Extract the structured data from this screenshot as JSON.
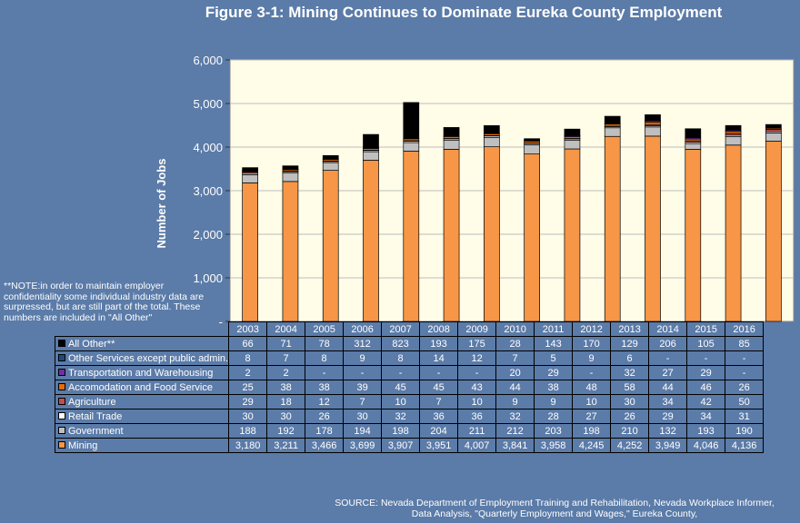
{
  "title": "Figure 3-1: Mining Continues to Dominate Eureka County Employment",
  "note": "**NOTE:in order to maintain employer confidentiality some individual industry data are surpressed, but are still part of the total. These numbers are included in \"All Other\"",
  "source": "SOURCE: Nevada Department of Employment Training and Rehabilitation, Nevada Workplace Informer, Data Analysis, \"Quarterly Employment and Wages,\" Eureka County,",
  "chart_data": {
    "type": "bar",
    "stacked": true,
    "ylabel": "Number of Jobs",
    "ylim": [
      0,
      6000
    ],
    "yticks": [
      "-",
      "1,000",
      "2,000",
      "3,000",
      "4,000",
      "5,000",
      "6,000"
    ],
    "categories": [
      "2003",
      "2004",
      "2005",
      "2006",
      "2007",
      "2008",
      "2009",
      "2010",
      "2011",
      "2012",
      "2013",
      "2014",
      "2015",
      "2016"
    ],
    "series": [
      {
        "name": "Mining",
        "color": "#f79646",
        "values": [
          3180,
          3211,
          3466,
          3699,
          3907,
          3951,
          4007,
          3841,
          3958,
          4245,
          4252,
          3949,
          4046,
          4136
        ],
        "labels": [
          "3,180",
          "3,211",
          "3,466",
          "3,699",
          "3,907",
          "3,951",
          "4,007",
          "3,841",
          "3,958",
          "4,245",
          "4,252",
          "3,949",
          "4,046",
          "4,136"
        ]
      },
      {
        "name": "Government",
        "color": "#bfbfbf",
        "values": [
          188,
          192,
          178,
          194,
          198,
          204,
          211,
          212,
          203,
          198,
          210,
          132,
          193,
          190
        ],
        "labels": [
          "188",
          "192",
          "178",
          "194",
          "198",
          "204",
          "211",
          "212",
          "203",
          "198",
          "210",
          "132",
          "193",
          "190"
        ]
      },
      {
        "name": "Retail Trade",
        "color": "#ffffff",
        "values": [
          30,
          30,
          26,
          30,
          32,
          36,
          36,
          32,
          28,
          27,
          26,
          29,
          34,
          31
        ],
        "labels": [
          "30",
          "30",
          "26",
          "30",
          "32",
          "36",
          "36",
          "32",
          "28",
          "27",
          "26",
          "29",
          "34",
          "31"
        ]
      },
      {
        "name": "Agriculture",
        "color": "#c0504d",
        "values": [
          29,
          18,
          12,
          7,
          10,
          7,
          10,
          9,
          9,
          10,
          30,
          34,
          42,
          50
        ],
        "labels": [
          "29",
          "18",
          "12",
          "7",
          "10",
          "7",
          "10",
          "9",
          "9",
          "10",
          "30",
          "34",
          "42",
          "50"
        ]
      },
      {
        "name": "Accomodation and Food Service",
        "color": "#e46c0a",
        "values": [
          25,
          38,
          38,
          39,
          45,
          45,
          43,
          44,
          38,
          48,
          58,
          44,
          46,
          26
        ],
        "labels": [
          "25",
          "38",
          "38",
          "39",
          "45",
          "45",
          "43",
          "44",
          "38",
          "48",
          "58",
          "44",
          "46",
          "26"
        ]
      },
      {
        "name": "Transportation and Warehousing",
        "color": "#7030a0",
        "values": [
          2,
          2,
          0,
          0,
          0,
          0,
          0,
          20,
          29,
          0,
          32,
          27,
          29,
          0
        ],
        "labels": [
          "2",
          "2",
          "-",
          "-",
          "-",
          "-",
          "-",
          "20",
          "29",
          "-",
          "32",
          "27",
          "29",
          "-"
        ]
      },
      {
        "name": "Other Services except public admin.",
        "color": "#1f497d",
        "values": [
          8,
          7,
          8,
          9,
          8,
          14,
          12,
          7,
          5,
          9,
          6,
          0,
          0,
          0
        ],
        "labels": [
          "8",
          "7",
          "8",
          "9",
          "8",
          "14",
          "12",
          "7",
          "5",
          "9",
          "6",
          "-",
          "-",
          "-"
        ]
      },
      {
        "name": "All Other**",
        "color": "#000000",
        "values": [
          66,
          71,
          78,
          312,
          823,
          193,
          175,
          28,
          143,
          170,
          129,
          206,
          105,
          85
        ],
        "labels": [
          "66",
          "71",
          "78",
          "312",
          "823",
          "193",
          "175",
          "28",
          "143",
          "170",
          "129",
          "206",
          "105",
          "85"
        ]
      }
    ]
  }
}
